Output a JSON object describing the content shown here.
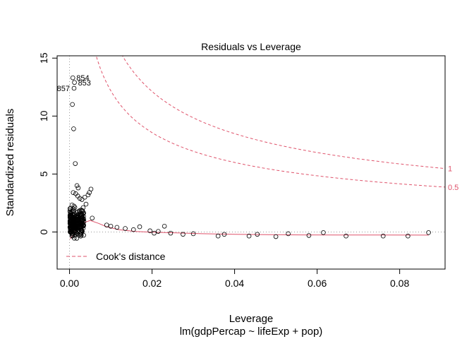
{
  "chart_data": {
    "type": "scatter",
    "title": "Residuals vs Leverage",
    "xlabel": "Leverage",
    "subtitle": "lm(gdpPercap ~ lifeExp + pop)",
    "ylabel": "Standardized residuals",
    "xlim": [
      -0.003,
      0.091
    ],
    "ylim": [
      -3.2,
      15.2
    ],
    "x_ticks": [
      0.0,
      0.02,
      0.04,
      0.06,
      0.08
    ],
    "x_tick_labels": [
      "0.00",
      "0.02",
      "0.04",
      "0.06",
      "0.08"
    ],
    "y_ticks": [
      0,
      5,
      10,
      15
    ],
    "y_tick_labels": [
      "0",
      "5",
      "10",
      "15"
    ],
    "grid": false,
    "reference_lines": {
      "x": 0,
      "y": 0
    },
    "legend": {
      "position": "bottom-left",
      "entries": [
        {
          "name": "Cook's distance",
          "style": "dashed",
          "color": "#DF536B"
        }
      ]
    },
    "cook_contours": [
      {
        "level": 1,
        "label": "1"
      },
      {
        "level": 0.5,
        "label": "0.5"
      }
    ],
    "n_params": 3,
    "cluster": {
      "x_range": [
        0.0001,
        0.0035
      ],
      "y_range": [
        -0.9,
        2.6
      ],
      "count": 260
    },
    "points": [
      [
        0.0008,
        13.3
      ],
      [
        0.0012,
        12.9
      ],
      [
        0.0011,
        12.4
      ],
      [
        0.0007,
        11.0
      ],
      [
        0.001,
        8.9
      ],
      [
        0.0014,
        5.9
      ],
      [
        0.0018,
        4.0
      ],
      [
        0.0021,
        3.8
      ],
      [
        0.0009,
        3.4
      ],
      [
        0.0015,
        3.3
      ],
      [
        0.002,
        3.1
      ],
      [
        0.0025,
        2.9
      ],
      [
        0.003,
        2.8
      ],
      [
        0.0037,
        3.0
      ],
      [
        0.0045,
        3.2
      ],
      [
        0.0052,
        3.7
      ],
      [
        0.0048,
        3.4
      ],
      [
        0.004,
        2.4
      ],
      [
        0.0033,
        2.1
      ],
      [
        0.0028,
        1.9
      ],
      [
        0.0055,
        1.2
      ],
      [
        0.009,
        0.6
      ],
      [
        0.01,
        0.5
      ],
      [
        0.0115,
        0.4
      ],
      [
        0.0135,
        0.3
      ],
      [
        0.0155,
        0.2
      ],
      [
        0.017,
        0.45
      ],
      [
        0.0195,
        0.1
      ],
      [
        0.0215,
        0.05
      ],
      [
        0.0205,
        -0.1
      ],
      [
        0.023,
        0.5
      ],
      [
        0.0245,
        -0.1
      ],
      [
        0.0275,
        -0.2
      ],
      [
        0.03,
        -0.15
      ],
      [
        0.036,
        -0.35
      ],
      [
        0.0375,
        -0.2
      ],
      [
        0.0435,
        -0.35
      ],
      [
        0.0455,
        -0.2
      ],
      [
        0.05,
        -0.4
      ],
      [
        0.053,
        -0.15
      ],
      [
        0.058,
        -0.3
      ],
      [
        0.0615,
        -0.05
      ],
      [
        0.067,
        -0.35
      ],
      [
        0.076,
        -0.35
      ],
      [
        0.082,
        -0.35
      ],
      [
        0.087,
        -0.05
      ]
    ],
    "smoother": [
      [
        0.0001,
        -0.6
      ],
      [
        0.001,
        -0.2
      ],
      [
        0.002,
        0.4
      ],
      [
        0.0035,
        0.8
      ],
      [
        0.005,
        1.0
      ],
      [
        0.007,
        0.75
      ],
      [
        0.009,
        0.45
      ],
      [
        0.012,
        0.2
      ],
      [
        0.016,
        0.05
      ],
      [
        0.02,
        -0.02
      ],
      [
        0.026,
        -0.08
      ],
      [
        0.032,
        -0.15
      ],
      [
        0.04,
        -0.2
      ],
      [
        0.048,
        -0.23
      ],
      [
        0.056,
        -0.25
      ],
      [
        0.065,
        -0.26
      ],
      [
        0.075,
        -0.26
      ],
      [
        0.087,
        -0.27
      ]
    ],
    "labeled_points": [
      {
        "label": "854",
        "x": 0.0008,
        "y": 13.3
      },
      {
        "label": "853",
        "x": 0.0012,
        "y": 12.9
      },
      {
        "label": "857",
        "x": 0.0011,
        "y": 12.4
      }
    ],
    "colors": {
      "points": "#000000",
      "cook": "#DF536B",
      "smoother": "#DF536B",
      "reference": "#999999"
    }
  }
}
